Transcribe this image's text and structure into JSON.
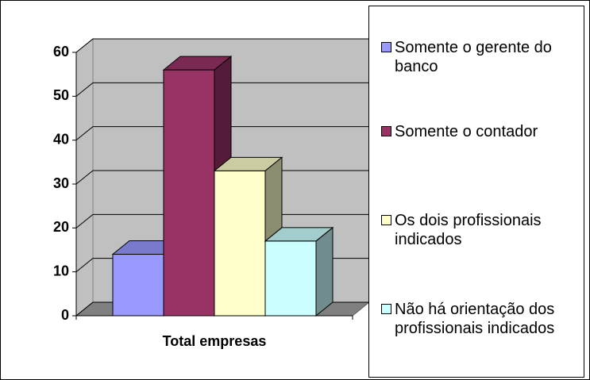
{
  "chart_data": {
    "type": "bar3d",
    "categories": [
      "Total empresas"
    ],
    "series": [
      {
        "name": "Somente o gerente do banco",
        "color": "#9999ff",
        "values": [
          14
        ]
      },
      {
        "name": "Somente o contador",
        "color": "#993366",
        "values": [
          56
        ]
      },
      {
        "name": "Os dois profissionais indicados",
        "color": "#ffffcc",
        "values": [
          33
        ]
      },
      {
        "name": "Não há orientação dos profissionais indicados",
        "color": "#ccffff",
        "values": [
          17
        ]
      }
    ],
    "ylim": [
      0,
      60
    ],
    "yticks": [
      0,
      10,
      20,
      30,
      40,
      50,
      60
    ],
    "grid": true,
    "legend": "right"
  }
}
